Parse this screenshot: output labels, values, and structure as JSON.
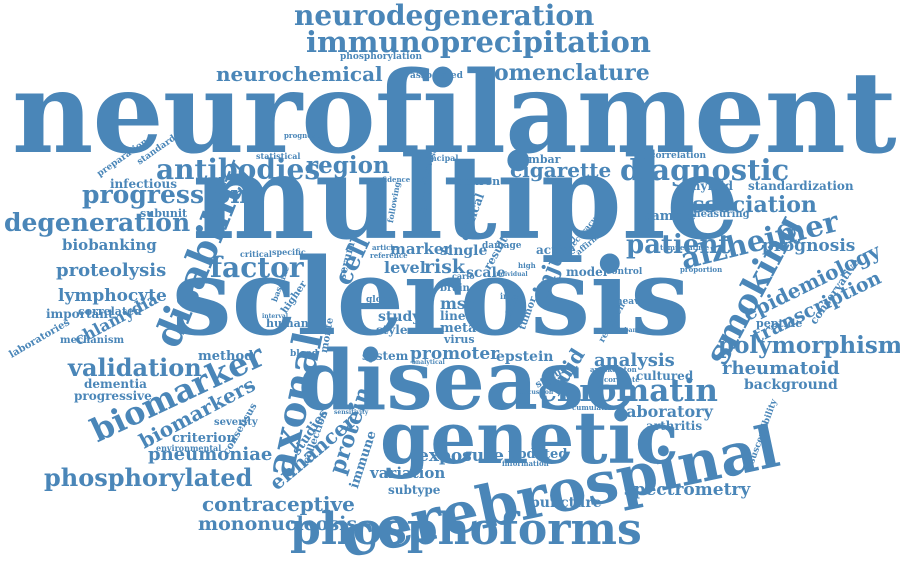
{
  "theme": {
    "word_color": "#4a86b8",
    "background": "#ffffff"
  },
  "words": {
    "neurofilament": "neurofilament",
    "multiple": "multiple",
    "sclerosis": "sclerosis",
    "disease": "disease",
    "genetic": "genetic",
    "cerebrospinal": "cerebrospinal",
    "phosphoforms": "phosphoforms",
    "neurodegeneration": "neurodegeneration",
    "immunoprecipitation": "immunoprecipitation",
    "neurochemical": "neurochemical",
    "nomenclature": "nomenclature",
    "phosphorylation": "phosphorylation",
    "associated": "associated",
    "antibodies": "antibodies",
    "region": "region",
    "progression": "progression",
    "degeneration": "degeneration",
    "diagnostic": "diagnostic",
    "cigarette": "cigarette",
    "association": "association",
    "alzheimer": "alzheimer",
    "disability": "disability",
    "factor": "factor",
    "biobanking": "biobanking",
    "proteolysis": "proteolysis",
    "lymphocyte": "lymphocyte",
    "chlamydia": "chlamydia",
    "cell": "cell",
    "level": "level",
    "risk": "risk",
    "marker": "marker",
    "single": "single",
    "patient": "patient",
    "injury": "injury",
    "smoking": "smoking",
    "epidemiology": "epidemiology",
    "transcription": "transcription",
    "prognosis": "prognosis",
    "polymorphism": "polymorphism",
    "validation": "validation",
    "biomarker": "biomarker",
    "biomarkers": "biomarkers",
    "axonal": "axonal",
    "chromatin": "chromatin",
    "analysis": "analysis",
    "promoter": "promoter",
    "epstein": "epstein",
    "fluid": "fluid",
    "rheumatoid": "rheumatoid",
    "background": "background",
    "laboratory": "laboratory",
    "arthritis": "arthritis",
    "cultured": "cultured",
    "criterion": "criterion",
    "pneumoniae": "pneumoniae",
    "phosphorylated": "phosphorylated",
    "enhancer": "enhancer",
    "protein": "protein",
    "exposure": "exposure",
    "updated": "updated",
    "variation": "variation",
    "subtype": "subtype",
    "contraceptive": "contraceptive",
    "mononucleosis": "mononucleosis",
    "puncture": "puncture",
    "spectrometry": "spectrometry",
    "method": "method",
    "dementia": "dementia",
    "progressive": "progressive",
    "correlation": "correlation",
    "amyloid": "amyloid",
    "standardization": "standardization",
    "sample": "sample",
    "measuring": "measuring",
    "lumbar": "lumbar",
    "neuron": "neuron",
    "infectious": "infectious",
    "subunit": "subunit",
    "preparation": "preparation",
    "standard": "standard",
    "statistical": "statistical",
    "principal": "principal",
    "confidence": "confidence",
    "clinical": "clinical",
    "element": "element",
    "following": "following",
    "increase": "increase",
    "serum": "serum",
    "critical": "critical",
    "specific": "specific",
    "laboratories": "laboratories",
    "correlated": "correlated",
    "important": "important",
    "mechanism": "mechanism",
    "baseline": "baseline",
    "higher": "higher",
    "human": "human",
    "blood": "blood",
    "system": "system",
    "study": "study",
    "style": "style",
    "mss": "mss",
    "line": "line",
    "meta": "meta",
    "virus": "virus",
    "brain": "brain",
    "monte": "monte",
    "carlo": "carlo",
    "scale": "scale",
    "result": "result",
    "damage": "damage",
    "active": "active",
    "model": "model",
    "control": "control",
    "temperature": "temperature",
    "proportion": "proportion",
    "conservative": "conservative",
    "peptide": "peptide",
    "heavy": "heavy",
    "tumor": "tumor",
    "chain": "chain",
    "status": "status",
    "inter": "inter",
    "axoskeleton": "axoskeleton",
    "correlate": "correlate",
    "cumulative": "cumulative",
    "sensitivity": "sensitivity",
    "collection": "collection",
    "immune": "immune",
    "consensus": "consensus",
    "studies": "studies",
    "severity": "severity",
    "environmental": "environmental",
    "susceptibility": "susceptibility",
    "discussion": "discussion",
    "information": "information",
    "research": "research",
    "analytical": "analytical",
    "global": "global",
    "reference": "reference",
    "article": "article",
    "accuracy": "accuracy",
    "affirm": "affirm",
    "prognostic": "prognostic",
    "interval": "interval",
    "biobanks": "biobanks",
    "high": "high",
    "individual": "individual"
  }
}
